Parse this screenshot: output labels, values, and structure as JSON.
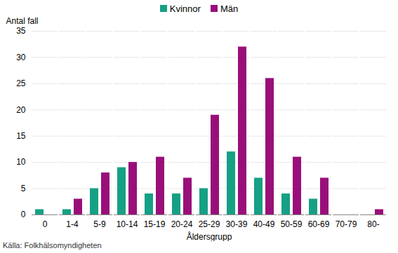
{
  "chart_data": {
    "type": "bar",
    "ylabel": "Antal fall",
    "xlabel": "Åldersgrupp",
    "caption": "Källa: Folkhälsomyndigheten",
    "categories": [
      "0",
      "1-4",
      "5-9",
      "10-14",
      "15-19",
      "20-24",
      "25-29",
      "30-39",
      "40-49",
      "50-59",
      "60-69",
      "70-79",
      "80-"
    ],
    "series": [
      {
        "name": "Kvinnor",
        "color": "#16a085",
        "values": [
          1,
          1,
          5,
          9,
          4,
          4,
          5,
          12,
          7,
          4,
          3,
          0,
          0
        ]
      },
      {
        "name": "Män",
        "color": "#990f7a",
        "values": [
          0,
          3,
          8,
          10,
          11,
          7,
          19,
          32,
          26,
          11,
          7,
          0,
          1
        ]
      }
    ],
    "ylim": [
      0,
      35
    ],
    "yticks": [
      0,
      5,
      10,
      15,
      20,
      25,
      30,
      35
    ],
    "grid": true,
    "legend": "top"
  }
}
